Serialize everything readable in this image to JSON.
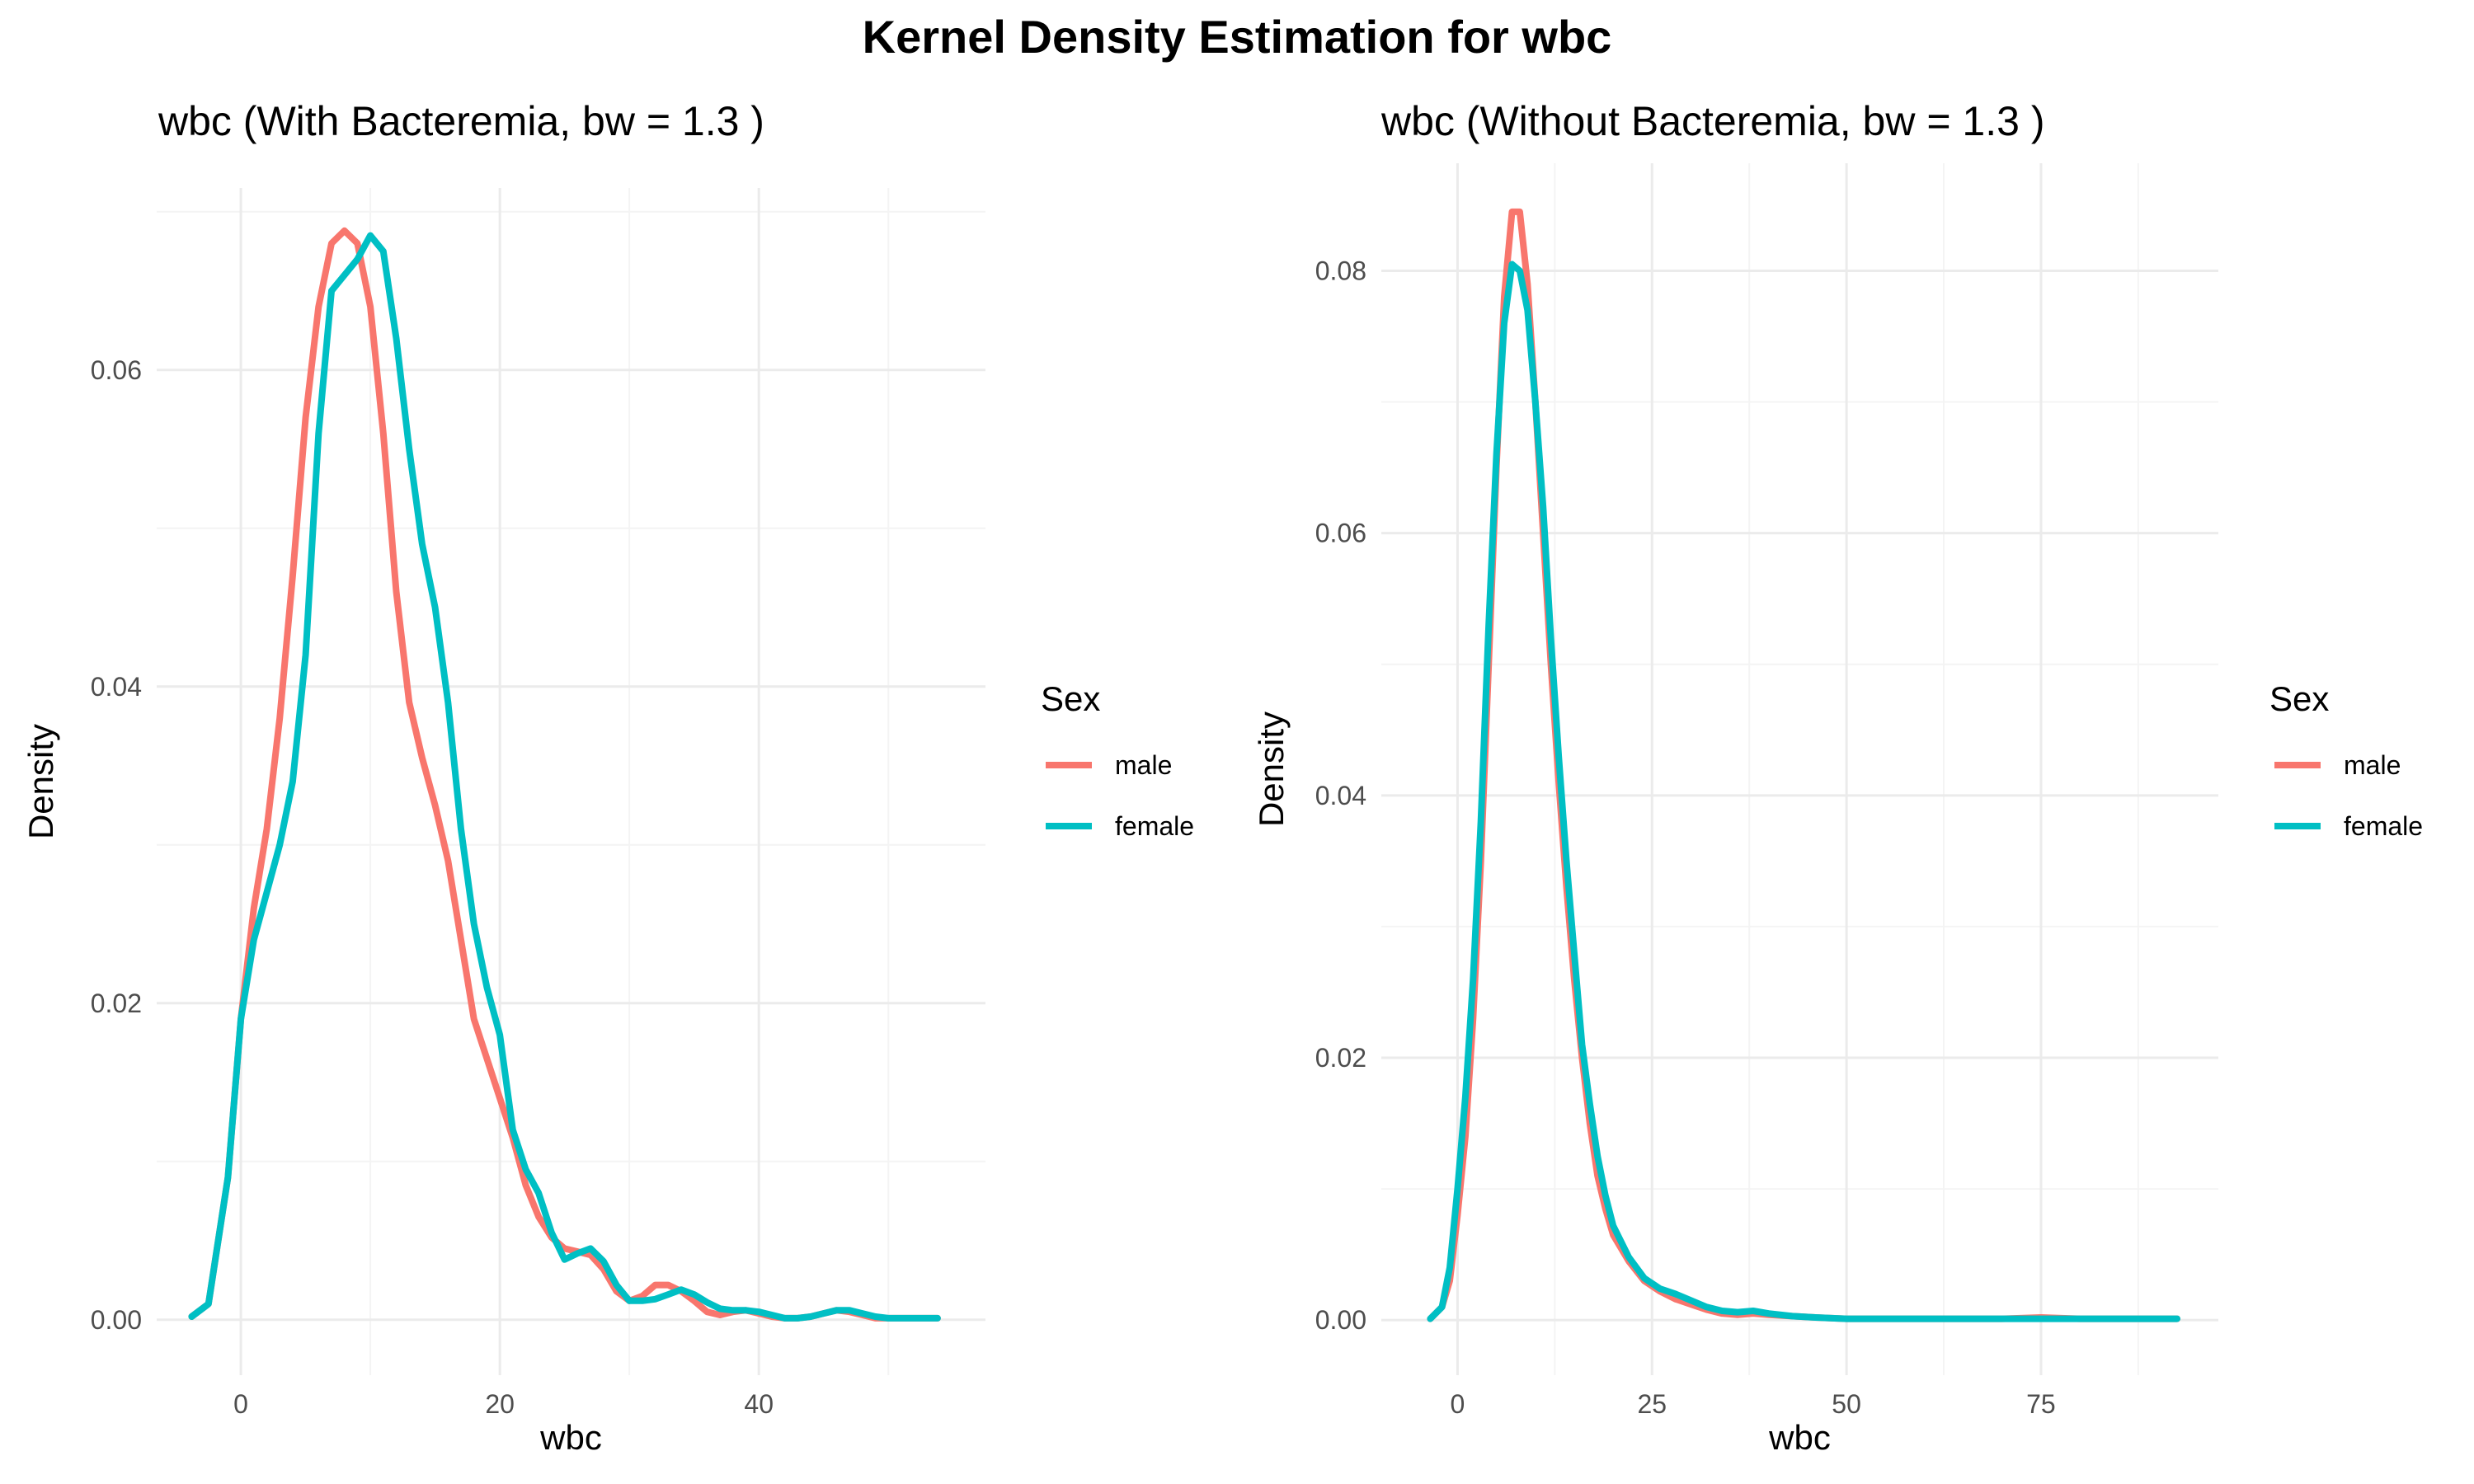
{
  "figure_title": "Kernel Density Estimation for wbc",
  "colors": {
    "male": "#F8766D",
    "female": "#00BFC4",
    "grid_major": "#EBEBEB",
    "grid_minor": "#F4F4F4"
  },
  "chart_data": [
    {
      "type": "line",
      "title": "wbc (With Bacteremia, bw = 1.3 )",
      "xlabel": "wbc",
      "ylabel": "Density",
      "xlim": [
        -6.5,
        57.5
      ],
      "ylim": [
        -0.0035,
        0.0715
      ],
      "x_ticks": [
        0,
        20,
        40
      ],
      "x_tick_labels": [
        "0",
        "20",
        "40"
      ],
      "y_ticks": [
        0.0,
        0.02,
        0.04,
        0.06
      ],
      "y_tick_labels": [
        "0.00",
        "0.02",
        "0.04",
        "0.06"
      ],
      "grid": true,
      "legend": {
        "title": "Sex",
        "position": "right",
        "entries": [
          "male",
          "female"
        ]
      },
      "series": [
        {
          "name": "male",
          "color": "#F8766D",
          "x": [
            -3.8,
            -2.5,
            -1,
            0,
            1,
            2,
            3,
            4,
            5,
            6,
            7,
            8,
            9,
            10,
            11,
            12,
            13,
            14,
            15,
            16,
            17,
            18,
            19,
            20,
            21,
            22,
            23,
            24,
            25,
            26,
            27,
            28,
            29,
            30,
            31,
            32,
            33,
            34,
            35,
            36,
            37,
            38,
            39,
            40,
            41,
            42,
            43,
            44,
            45,
            46,
            47,
            48,
            49,
            50,
            51,
            52,
            53.8
          ],
          "y": [
            0.0002,
            0.001,
            0.009,
            0.019,
            0.026,
            0.031,
            0.038,
            0.047,
            0.057,
            0.064,
            0.068,
            0.0688,
            0.068,
            0.064,
            0.056,
            0.046,
            0.039,
            0.0355,
            0.0325,
            0.029,
            0.024,
            0.019,
            0.0165,
            0.014,
            0.0115,
            0.0085,
            0.0065,
            0.0052,
            0.0045,
            0.0043,
            0.0041,
            0.0032,
            0.0018,
            0.0012,
            0.0015,
            0.0022,
            0.0022,
            0.0018,
            0.0012,
            0.0005,
            0.0003,
            0.0005,
            0.0006,
            0.0004,
            0.0002,
            0.0001,
            0.0001,
            0.0002,
            0.0004,
            0.0006,
            0.0005,
            0.0003,
            0.0001,
            0.0001,
            0.0001,
            0.0001,
            0.0001
          ]
        },
        {
          "name": "female",
          "color": "#00BFC4",
          "x": [
            -3.8,
            -2.5,
            -1,
            0,
            1,
            2,
            3,
            4,
            5,
            6,
            7,
            8,
            9,
            10,
            11,
            12,
            13,
            14,
            15,
            16,
            17,
            18,
            19,
            20,
            21,
            22,
            23,
            24,
            25,
            26,
            27,
            28,
            29,
            30,
            31,
            32,
            33,
            34,
            35,
            36,
            37,
            38,
            39,
            40,
            41,
            42,
            43,
            44,
            45,
            46,
            47,
            48,
            49,
            50,
            51,
            52,
            53.8
          ],
          "y": [
            0.0002,
            0.001,
            0.009,
            0.019,
            0.024,
            0.027,
            0.03,
            0.034,
            0.042,
            0.056,
            0.065,
            0.066,
            0.067,
            0.0685,
            0.0675,
            0.062,
            0.055,
            0.049,
            0.045,
            0.039,
            0.031,
            0.025,
            0.021,
            0.018,
            0.012,
            0.0095,
            0.008,
            0.0055,
            0.0038,
            0.0042,
            0.0045,
            0.0037,
            0.0022,
            0.0012,
            0.0012,
            0.0013,
            0.0016,
            0.0019,
            0.0016,
            0.0011,
            0.0007,
            0.0006,
            0.0006,
            0.0005,
            0.0003,
            0.0001,
            0.0001,
            0.0002,
            0.0004,
            0.0006,
            0.0006,
            0.0004,
            0.0002,
            0.0001,
            0.0001,
            0.0001,
            0.0001
          ]
        }
      ]
    },
    {
      "type": "line",
      "title": "wbc (Without Bacteremia, bw = 1.3 )",
      "xlabel": "wbc",
      "ylabel": "Density",
      "xlim": [
        -9.8,
        97.8
      ],
      "ylim": [
        -0.0042,
        0.0882
      ],
      "x_ticks": [
        0,
        25,
        50,
        75
      ],
      "x_tick_labels": [
        "0",
        "25",
        "50",
        "75"
      ],
      "y_ticks": [
        0.0,
        0.02,
        0.04,
        0.06,
        0.08
      ],
      "y_tick_labels": [
        "0.00",
        "0.02",
        "0.04",
        "0.06",
        "0.08"
      ],
      "grid": true,
      "legend": {
        "title": "Sex",
        "position": "right",
        "entries": [
          "male",
          "female"
        ]
      },
      "series": [
        {
          "name": "male",
          "color": "#F8766D",
          "x": [
            -3.5,
            -2,
            -1,
            0,
            1,
            2,
            3,
            4,
            5,
            6,
            7,
            8,
            9,
            10,
            11,
            12,
            13,
            14,
            15,
            16,
            17,
            18,
            19,
            20,
            22,
            24,
            26,
            28,
            30,
            32,
            34,
            36,
            38,
            40,
            43,
            46,
            50,
            55,
            60,
            65,
            70,
            75,
            80,
            85,
            90,
            92.5
          ],
          "y": [
            0.0001,
            0.001,
            0.003,
            0.008,
            0.014,
            0.023,
            0.035,
            0.05,
            0.065,
            0.078,
            0.0845,
            0.0845,
            0.079,
            0.07,
            0.06,
            0.05,
            0.041,
            0.033,
            0.026,
            0.02,
            0.015,
            0.011,
            0.0085,
            0.0065,
            0.0045,
            0.003,
            0.0022,
            0.0016,
            0.0012,
            0.0008,
            0.0005,
            0.0004,
            0.0005,
            0.0004,
            0.0003,
            0.0002,
            0.0001,
            0.0001,
            0.0001,
            0.0001,
            0.0001,
            0.0002,
            0.0001,
            0.0001,
            0.0001,
            0.0001
          ]
        },
        {
          "name": "female",
          "color": "#00BFC4",
          "x": [
            -3.5,
            -2,
            -1,
            0,
            1,
            2,
            3,
            4,
            5,
            6,
            7,
            8,
            9,
            10,
            11,
            12,
            13,
            14,
            15,
            16,
            17,
            18,
            19,
            20,
            22,
            24,
            26,
            28,
            30,
            32,
            34,
            36,
            38,
            40,
            43,
            46,
            50,
            55,
            60,
            65,
            70,
            75,
            80,
            85,
            90,
            92.5
          ],
          "y": [
            0.0001,
            0.001,
            0.004,
            0.01,
            0.017,
            0.026,
            0.038,
            0.053,
            0.066,
            0.076,
            0.0805,
            0.08,
            0.077,
            0.07,
            0.062,
            0.052,
            0.043,
            0.035,
            0.028,
            0.021,
            0.0165,
            0.0125,
            0.0095,
            0.0072,
            0.0048,
            0.0032,
            0.0024,
            0.002,
            0.0015,
            0.001,
            0.0007,
            0.0006,
            0.0007,
            0.0005,
            0.0003,
            0.0002,
            0.0001,
            0.0001,
            0.0001,
            0.0001,
            0.0001,
            0.0001,
            0.0001,
            0.0001,
            0.0001,
            0.0001
          ]
        }
      ]
    }
  ]
}
